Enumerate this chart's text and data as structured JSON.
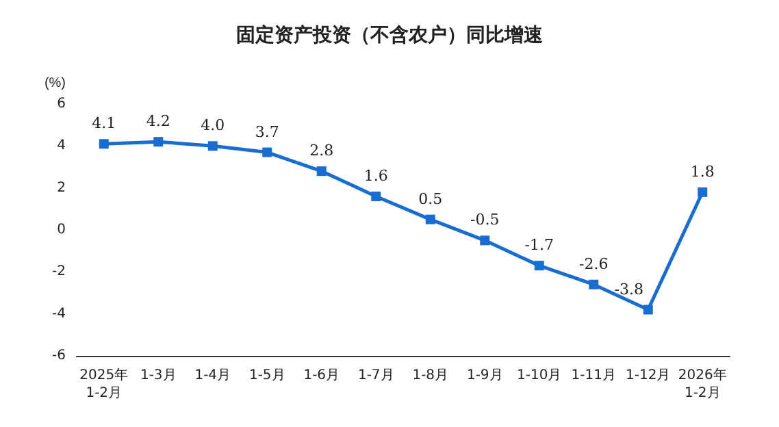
{
  "chart_data": {
    "type": "line",
    "title": "固定资产投资（不含农户）同比增速",
    "ylabel": "(%)",
    "categories": [
      "2025年\n1-2月",
      "1-3月",
      "1-4月",
      "1-5月",
      "1-6月",
      "1-7月",
      "1-8月",
      "1-9月",
      "1-10月",
      "1-11月",
      "1-12月",
      "2026年\n1-2月"
    ],
    "series": [
      {
        "color": "#1a6dd0",
        "values": [
          4.1,
          4.2,
          4.0,
          3.7,
          2.8,
          1.6,
          0.5,
          -0.5,
          -1.7,
          -2.6,
          -3.8,
          1.8
        ],
        "value_labels": [
          "4.1",
          "4.2",
          "4.0",
          "3.7",
          "2.8",
          "1.6",
          "0.5",
          "-0.5",
          "-1.7",
          "-2.6",
          "-3.8",
          "1.8"
        ]
      }
    ],
    "ylim": [
      -6,
      6
    ],
    "yticks": [
      -6,
      -4,
      -2,
      0,
      2,
      4,
      6
    ],
    "marker": "square",
    "line_style": "solid"
  }
}
